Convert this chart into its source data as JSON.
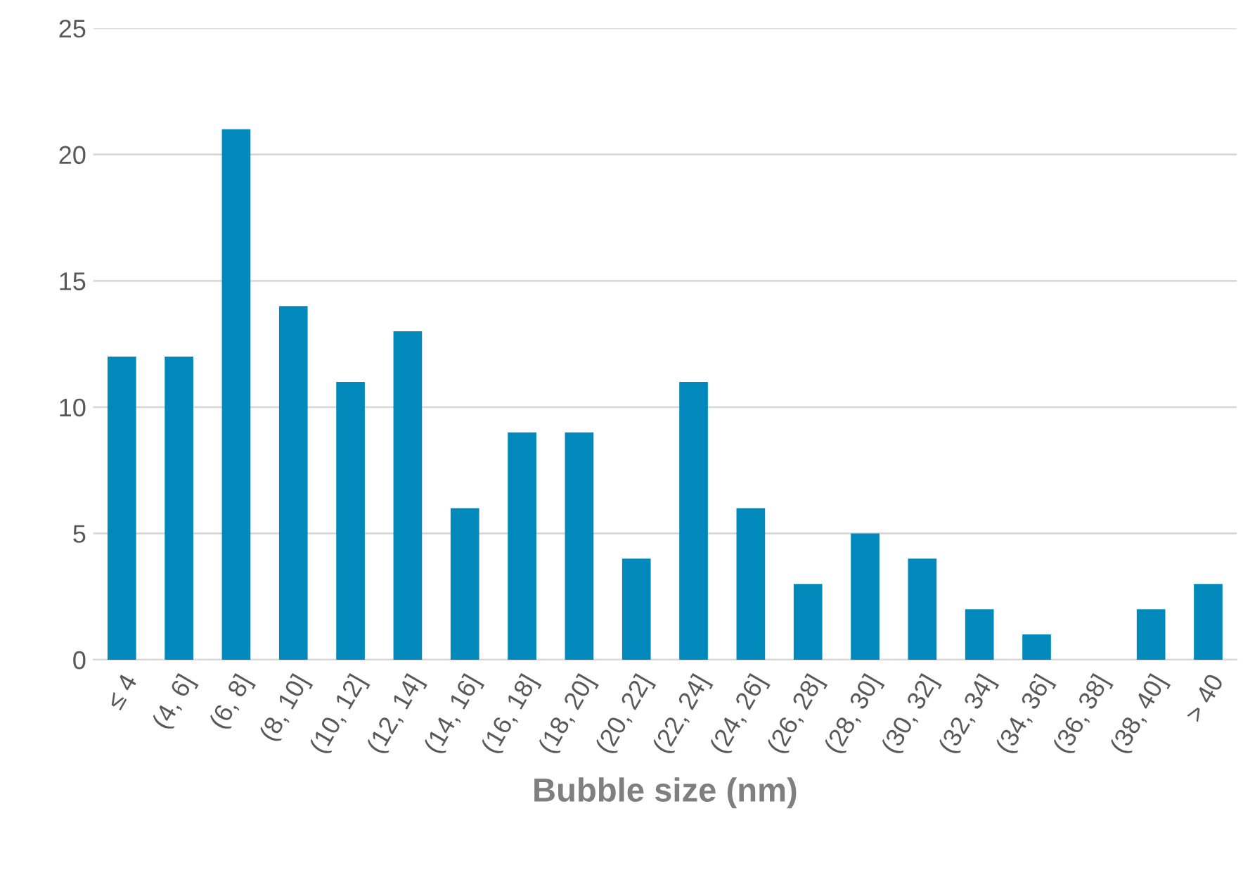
{
  "chart_data": {
    "type": "bar",
    "xlabel": "Bubble size (nm)",
    "categories": [
      "≤ 4",
      "(4, 6]",
      "(6, 8]",
      "(8, 10]",
      "(10, 12]",
      "(12, 14]",
      "(14, 16]",
      "(16, 18]",
      "(18, 20]",
      "(20, 22]",
      "(22, 24]",
      "(24, 26]",
      "(26, 28]",
      "(28, 30]",
      "(30, 32]",
      "(32, 34]",
      "(34, 36]",
      "(36, 38]",
      "(38, 40]",
      "> 40"
    ],
    "values": [
      12,
      12,
      21,
      14,
      11,
      13,
      6,
      9,
      9,
      4,
      11,
      6,
      3,
      5,
      4,
      2,
      1,
      0,
      2,
      3
    ],
    "color": "#0089ba",
    "ylim": [
      0,
      25
    ],
    "yticks": [
      0,
      5,
      10,
      15,
      20,
      25
    ],
    "grid": "y"
  }
}
